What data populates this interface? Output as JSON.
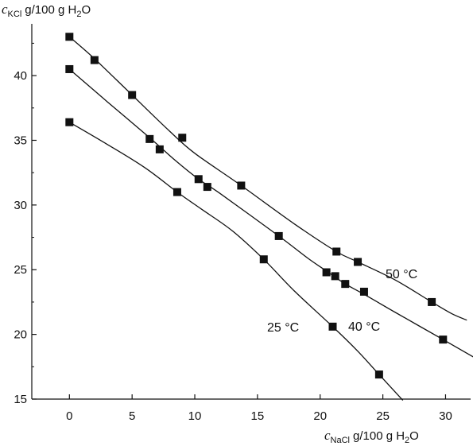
{
  "chart_data": {
    "type": "line",
    "y_label": {
      "symbol": "c",
      "subscript": "KCl",
      "unit_prefix": "g/100 g H",
      "unit_sub": "2",
      "unit_suffix": "O"
    },
    "x_label": {
      "symbol": "c",
      "subscript": "NaCl",
      "unit_prefix": "g/100 g H",
      "unit_sub": "2",
      "unit_suffix": "O"
    },
    "xlim": [
      -3,
      32
    ],
    "ylim": [
      15,
      44
    ],
    "x_ticks": [
      "0",
      "5",
      "10",
      "15",
      "20",
      "25",
      "30"
    ],
    "y_ticks": [
      "15",
      "20",
      "25",
      "30",
      "35",
      "40"
    ],
    "grid": false,
    "series": [
      {
        "name": "50 °C",
        "points": [
          [
            0,
            43.0
          ],
          [
            2,
            41.2
          ],
          [
            5,
            38.5
          ],
          [
            9,
            35.2
          ],
          [
            13.7,
            31.5
          ],
          [
            21.3,
            26.4
          ],
          [
            23,
            25.6
          ],
          [
            28.9,
            22.5
          ]
        ],
        "curve": [
          [
            0,
            43.0
          ],
          [
            2,
            41.3
          ],
          [
            5,
            38.5
          ],
          [
            8,
            35.7
          ],
          [
            10,
            34.0
          ],
          [
            13.7,
            31.5
          ],
          [
            18,
            28.5
          ],
          [
            21.3,
            26.4
          ],
          [
            23,
            25.6
          ],
          [
            26,
            24.2
          ],
          [
            28.9,
            22.5
          ],
          [
            30.5,
            21.6
          ],
          [
            31.7,
            21.1
          ]
        ]
      },
      {
        "name": "40 °C",
        "points": [
          [
            0,
            40.5
          ],
          [
            6.4,
            35.1
          ],
          [
            7.2,
            34.3
          ],
          [
            10.3,
            32.0
          ],
          [
            11,
            31.4
          ],
          [
            16.7,
            27.6
          ],
          [
            20.5,
            24.8
          ],
          [
            21.2,
            24.5
          ],
          [
            22,
            23.9
          ],
          [
            23.5,
            23.3
          ],
          [
            29.8,
            19.6
          ]
        ],
        "curve": [
          [
            0,
            40.5
          ],
          [
            3,
            38.0
          ],
          [
            6.4,
            35.2
          ],
          [
            8.5,
            33.4
          ],
          [
            10.3,
            32.0
          ],
          [
            12,
            30.9
          ],
          [
            16.7,
            27.6
          ],
          [
            19,
            25.9
          ],
          [
            20.5,
            24.9
          ],
          [
            22,
            23.9
          ],
          [
            23.5,
            23.1
          ],
          [
            26,
            21.7
          ],
          [
            29.8,
            19.6
          ],
          [
            32.5,
            18.1
          ]
        ]
      },
      {
        "name": "25 °C",
        "points": [
          [
            0,
            36.4
          ],
          [
            8.6,
            31.0
          ],
          [
            15.5,
            25.8
          ],
          [
            21,
            20.6
          ],
          [
            24.7,
            16.9
          ]
        ],
        "curve": [
          [
            0,
            36.4
          ],
          [
            3,
            34.7
          ],
          [
            6,
            32.9
          ],
          [
            8.6,
            31.0
          ],
          [
            10.5,
            29.7
          ],
          [
            13,
            28.0
          ],
          [
            15.5,
            25.8
          ],
          [
            18,
            23.3
          ],
          [
            21,
            20.6
          ],
          [
            23,
            18.7
          ],
          [
            24.7,
            16.9
          ],
          [
            26.6,
            14.9
          ]
        ]
      }
    ]
  }
}
